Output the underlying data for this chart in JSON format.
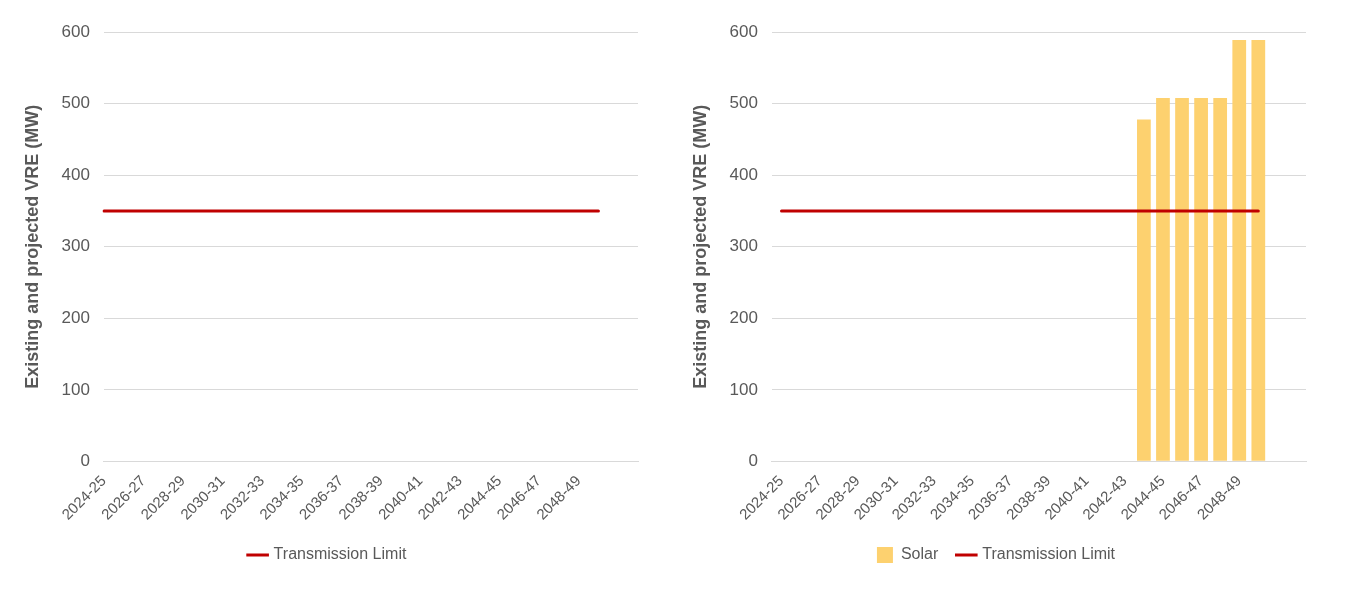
{
  "chart_data": [
    {
      "type": "line",
      "ylabel": "Existing and projected VRE (MW)",
      "categories": [
        "2024-25",
        null,
        "2026-27",
        null,
        "2028-29",
        null,
        "2030-31",
        null,
        "2032-33",
        null,
        "2034-35",
        null,
        "2036-37",
        null,
        "2038-39",
        null,
        "2040-41",
        null,
        "2042-43",
        null,
        "2044-45",
        null,
        "2046-47",
        null,
        "2048-49",
        null,
        null,
        null
      ],
      "series": [
        {
          "name": "Transmission Limit",
          "color": "#c00000",
          "values": [
            350,
            350,
            350,
            350,
            350,
            350,
            350,
            350,
            350,
            350,
            350,
            350,
            350,
            350,
            350,
            350,
            350,
            350,
            350,
            350,
            350,
            350,
            350,
            350,
            350,
            350,
            null,
            null
          ]
        }
      ],
      "ylim": [
        0,
        600
      ],
      "yticks": [
        0,
        100,
        200,
        300,
        400,
        500,
        600
      ],
      "grid": "y",
      "legend": "bottom",
      "marker": "none"
    },
    {
      "type": "bar",
      "ylabel": "Existing and projected VRE (MW)",
      "categories": [
        "2024-25",
        null,
        "2026-27",
        null,
        "2028-29",
        null,
        "2030-31",
        null,
        "2032-33",
        null,
        "2034-35",
        null,
        "2036-37",
        null,
        "2038-39",
        null,
        "2040-41",
        null,
        "2042-43",
        null,
        "2044-45",
        null,
        "2046-47",
        null,
        "2048-49",
        null,
        null,
        null
      ],
      "series": [
        {
          "name": "Solar",
          "type": "bar",
          "color": "#fdd16f",
          "values": [
            null,
            null,
            null,
            null,
            null,
            null,
            null,
            null,
            null,
            null,
            null,
            null,
            null,
            null,
            null,
            null,
            null,
            null,
            null,
            478,
            508,
            508,
            508,
            508,
            589,
            589,
            null,
            null
          ]
        },
        {
          "name": "Transmission Limit",
          "type": "line",
          "color": "#c00000",
          "values": [
            350,
            350,
            350,
            350,
            350,
            350,
            350,
            350,
            350,
            350,
            350,
            350,
            350,
            350,
            350,
            350,
            350,
            350,
            350,
            350,
            350,
            350,
            350,
            350,
            350,
            350,
            null,
            null
          ]
        }
      ],
      "ylim": [
        0,
        600
      ],
      "yticks": [
        0,
        100,
        200,
        300,
        400,
        500,
        600
      ],
      "grid": "y",
      "legend": "bottom",
      "marker": "none"
    }
  ]
}
